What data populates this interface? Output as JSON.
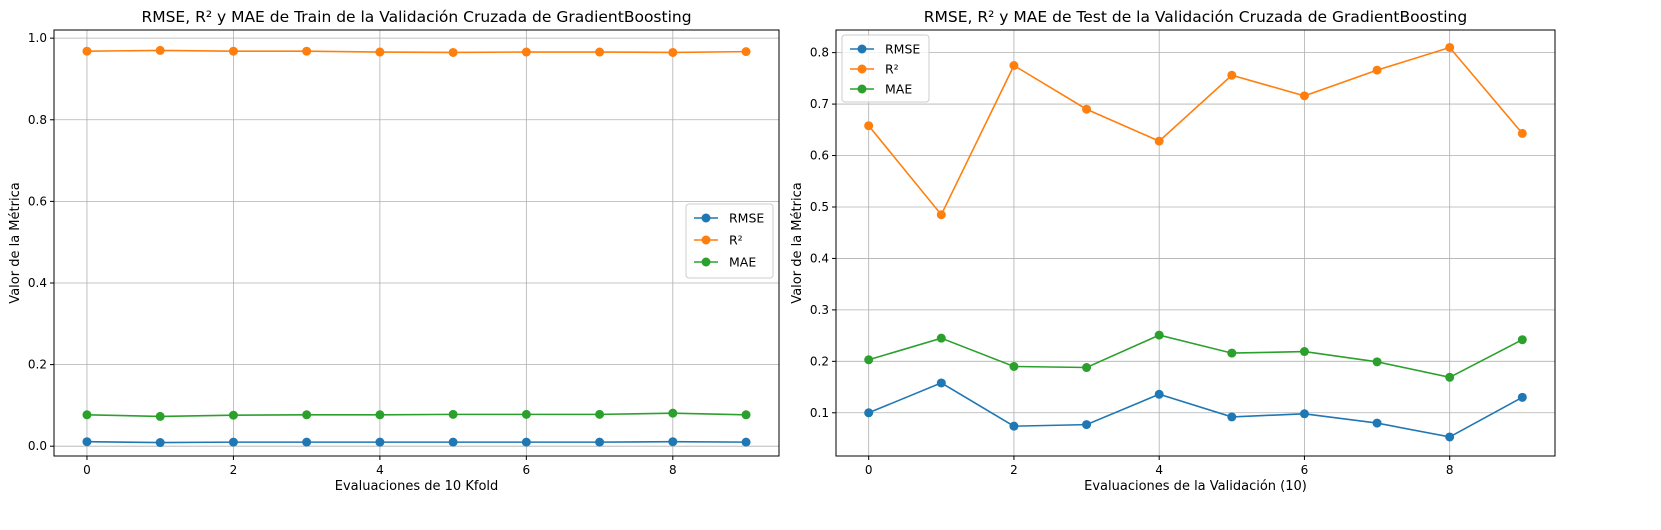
{
  "colors": {
    "rmse": "#1f77b4",
    "r2": "#ff7f0e",
    "mae": "#2ca02c",
    "grid": "#b0b0b0",
    "axes": "#000000"
  },
  "chart_data": [
    {
      "type": "line",
      "title": "RMSE, R² y MAE de Train de la Validación Cruzada de GradientBoosting",
      "xlabel": "Evaluaciones de 10 Kfold",
      "ylabel": "Valor de la Métrica",
      "x": [
        0,
        1,
        2,
        3,
        4,
        5,
        6,
        7,
        8,
        9
      ],
      "xlim": [
        -0.45,
        9.45
      ],
      "ylim": [
        -0.024,
        1.02
      ],
      "xticks": [
        0,
        2,
        4,
        6,
        8
      ],
      "yticks": [
        0.0,
        0.2,
        0.4,
        0.6,
        0.8,
        1.0
      ],
      "ytick_labels": [
        "0.0",
        "0.2",
        "0.4",
        "0.6",
        "0.8",
        "1.0"
      ],
      "grid": true,
      "legend_position": "center-right",
      "series": [
        {
          "name": "RMSE",
          "color_key": "rmse",
          "values": [
            0.011,
            0.009,
            0.01,
            0.01,
            0.01,
            0.01,
            0.01,
            0.01,
            0.011,
            0.01
          ]
        },
        {
          "name": "R²",
          "color_key": "r2",
          "values": [
            0.968,
            0.97,
            0.968,
            0.968,
            0.966,
            0.965,
            0.966,
            0.966,
            0.965,
            0.967
          ]
        },
        {
          "name": "MAE",
          "color_key": "mae",
          "values": [
            0.077,
            0.073,
            0.076,
            0.077,
            0.077,
            0.078,
            0.078,
            0.078,
            0.081,
            0.077
          ]
        }
      ]
    },
    {
      "type": "line",
      "title": "RMSE, R² y MAE de Test de la Validación Cruzada de GradientBoosting",
      "xlabel": "Evaluaciones de la Validación (10)",
      "ylabel": "Valor de la Métrica",
      "x": [
        0,
        1,
        2,
        3,
        4,
        5,
        6,
        7,
        8,
        9
      ],
      "xlim": [
        -0.45,
        9.45
      ],
      "ylim": [
        0.016,
        0.844
      ],
      "xticks": [
        0,
        2,
        4,
        6,
        8
      ],
      "yticks": [
        0.1,
        0.2,
        0.3,
        0.4,
        0.5,
        0.6,
        0.7,
        0.8
      ],
      "ytick_labels": [
        "0.1",
        "0.2",
        "0.3",
        "0.4",
        "0.5",
        "0.6",
        "0.7",
        "0.8"
      ],
      "grid": true,
      "legend_position": "upper-left",
      "series": [
        {
          "name": "RMSE",
          "color_key": "rmse",
          "values": [
            0.1,
            0.158,
            0.074,
            0.077,
            0.136,
            0.092,
            0.098,
            0.08,
            0.053,
            0.13
          ]
        },
        {
          "name": "R²",
          "color_key": "r2",
          "values": [
            0.658,
            0.485,
            0.775,
            0.69,
            0.628,
            0.756,
            0.716,
            0.766,
            0.81,
            0.643
          ]
        },
        {
          "name": "MAE",
          "color_key": "mae",
          "values": [
            0.203,
            0.245,
            0.19,
            0.188,
            0.251,
            0.216,
            0.219,
            0.199,
            0.169,
            0.242
          ]
        }
      ]
    }
  ]
}
